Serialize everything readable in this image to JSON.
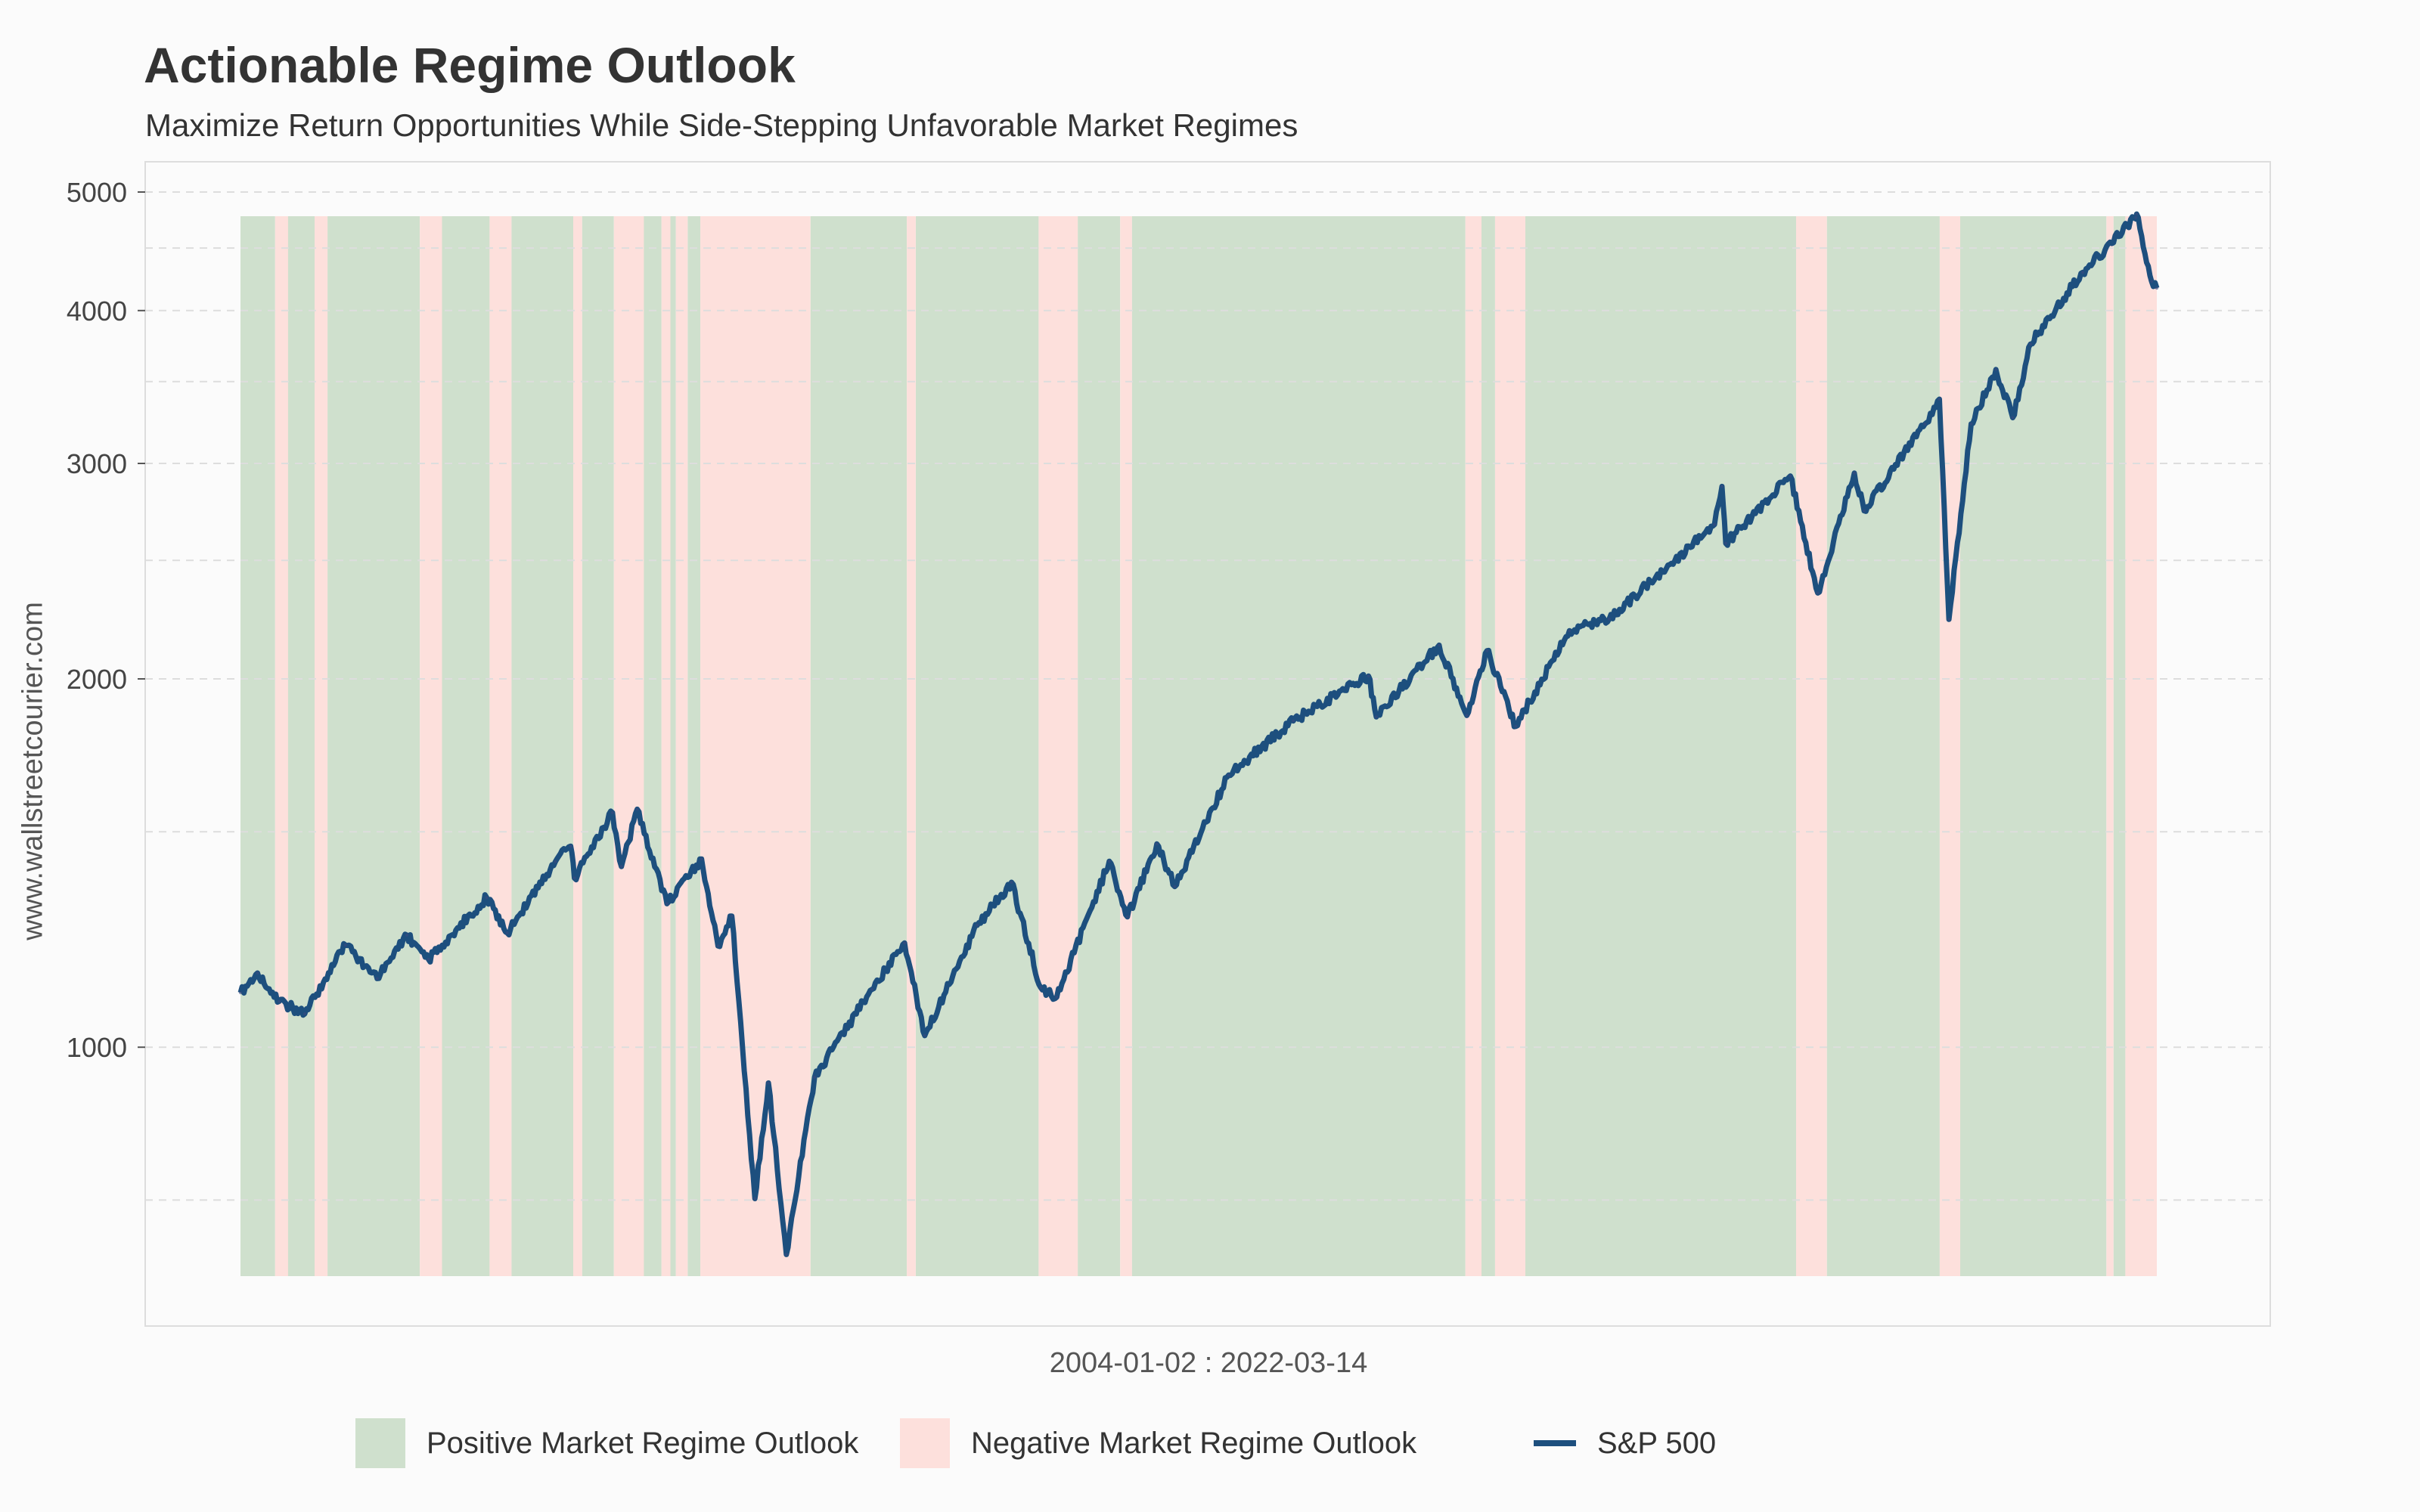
{
  "title": "Actionable Regime Outlook",
  "subtitle": "Maximize Return Opportunities While Side-Stepping Unfavorable Market Regimes",
  "ylabel": "www.wallstreetcourier.com",
  "xlabel": "2004-01-02 : 2022-03-14",
  "legend": {
    "positive": "Positive Market Regime Outlook",
    "negative": "Negative Market Regime Outlook",
    "sp500": "S&P 500"
  },
  "colors": {
    "positive": "#cfe0cd",
    "negative": "#fde0dc",
    "line": "#1d4f7e",
    "line_bear": "#3a4b80",
    "grid": "#dddddd"
  },
  "chart_data": {
    "type": "line",
    "title": "Actionable Regime Outlook",
    "subtitle": "Maximize Return Opportunities While Side-Stepping Unfavorable Market Regimes",
    "xlabel": "2004-01-02 : 2022-03-14",
    "ylabel": "www.wallstreetcourier.com",
    "y_scale": "log",
    "ylim": [
      650,
      5000
    ],
    "yticks": [
      1000,
      2000,
      3000,
      4000,
      5000
    ],
    "x_range": [
      "2004-01-02",
      "2022-03-14"
    ],
    "grid": true,
    "legend_position": "bottom",
    "series": [
      {
        "name": "S&P 500",
        "points": [
          [
            "2004-01-02",
            1108
          ],
          [
            "2004-03-01",
            1150
          ],
          [
            "2004-05-15",
            1090
          ],
          [
            "2004-08-12",
            1065
          ],
          [
            "2004-12-31",
            1212
          ],
          [
            "2005-04-20",
            1138
          ],
          [
            "2005-08-01",
            1235
          ],
          [
            "2005-10-15",
            1180
          ],
          [
            "2006-05-05",
            1325
          ],
          [
            "2006-07-15",
            1240
          ],
          [
            "2006-12-29",
            1418
          ],
          [
            "2007-02-20",
            1460
          ],
          [
            "2007-03-05",
            1375
          ],
          [
            "2007-07-15",
            1555
          ],
          [
            "2007-08-15",
            1405
          ],
          [
            "2007-10-09",
            1565
          ],
          [
            "2008-01-20",
            1310
          ],
          [
            "2008-05-19",
            1425
          ],
          [
            "2008-07-15",
            1210
          ],
          [
            "2008-09-01",
            1280
          ],
          [
            "2008-11-20",
            752
          ],
          [
            "2009-01-06",
            935
          ],
          [
            "2009-03-09",
            677
          ],
          [
            "2009-06-15",
            945
          ],
          [
            "2009-12-31",
            1115
          ],
          [
            "2010-04-23",
            1217
          ],
          [
            "2010-07-02",
            1022
          ],
          [
            "2010-12-31",
            1258
          ],
          [
            "2011-04-29",
            1364
          ],
          [
            "2011-08-08",
            1119
          ],
          [
            "2011-10-03",
            1099
          ],
          [
            "2012-04-02",
            1419
          ],
          [
            "2012-06-04",
            1278
          ],
          [
            "2012-09-14",
            1466
          ],
          [
            "2012-11-15",
            1353
          ],
          [
            "2013-05-21",
            1669
          ],
          [
            "2013-12-31",
            1848
          ],
          [
            "2014-09-18",
            2011
          ],
          [
            "2014-10-15",
            1862
          ],
          [
            "2015-05-21",
            2131
          ],
          [
            "2015-08-25",
            1867
          ],
          [
            "2015-11-03",
            2109
          ],
          [
            "2016-02-11",
            1829
          ],
          [
            "2016-08-15",
            2190
          ],
          [
            "2016-12-31",
            2239
          ],
          [
            "2017-12-31",
            2674
          ],
          [
            "2018-01-26",
            2873
          ],
          [
            "2018-02-08",
            2581
          ],
          [
            "2018-09-20",
            2930
          ],
          [
            "2018-12-24",
            2351
          ],
          [
            "2019-04-30",
            2946
          ],
          [
            "2019-06-03",
            2744
          ],
          [
            "2019-12-31",
            3231
          ],
          [
            "2020-02-19",
            3386
          ],
          [
            "2020-03-23",
            2237
          ],
          [
            "2020-06-08",
            3232
          ],
          [
            "2020-09-02",
            3580
          ],
          [
            "2020-10-30",
            3270
          ],
          [
            "2020-12-31",
            3756
          ],
          [
            "2021-06-30",
            4298
          ],
          [
            "2021-12-31",
            4766
          ],
          [
            "2022-01-03",
            4797
          ],
          [
            "2022-02-24",
            4225
          ],
          [
            "2022-03-14",
            4173
          ]
        ]
      }
    ],
    "regimes": [
      {
        "regime": "positive",
        "start": "2004-01-02",
        "end": "2004-05-01"
      },
      {
        "regime": "negative",
        "start": "2004-05-01",
        "end": "2004-06-15"
      },
      {
        "regime": "positive",
        "start": "2004-06-15",
        "end": "2004-09-15"
      },
      {
        "regime": "negative",
        "start": "2004-09-15",
        "end": "2004-10-30"
      },
      {
        "regime": "positive",
        "start": "2004-10-30",
        "end": "2005-09-15"
      },
      {
        "regime": "negative",
        "start": "2005-09-15",
        "end": "2005-12-01"
      },
      {
        "regime": "positive",
        "start": "2005-12-01",
        "end": "2006-05-15"
      },
      {
        "regime": "negative",
        "start": "2006-05-15",
        "end": "2006-07-30"
      },
      {
        "regime": "positive",
        "start": "2006-07-30",
        "end": "2007-03-01"
      },
      {
        "regime": "negative",
        "start": "2007-03-01",
        "end": "2007-04-01"
      },
      {
        "regime": "positive",
        "start": "2007-04-01",
        "end": "2007-07-20"
      },
      {
        "regime": "negative",
        "start": "2007-07-20",
        "end": "2007-11-01"
      },
      {
        "regime": "positive",
        "start": "2007-11-01",
        "end": "2008-01-01"
      },
      {
        "regime": "negative",
        "start": "2008-01-01",
        "end": "2008-02-01"
      },
      {
        "regime": "positive",
        "start": "2008-02-01",
        "end": "2008-02-20"
      },
      {
        "regime": "negative",
        "start": "2008-02-20",
        "end": "2008-04-01"
      },
      {
        "regime": "positive",
        "start": "2008-04-01",
        "end": "2008-05-15"
      },
      {
        "regime": "negative",
        "start": "2008-05-15",
        "end": "2009-06-01"
      },
      {
        "regime": "positive",
        "start": "2009-06-01",
        "end": "2010-05-01"
      },
      {
        "regime": "negative",
        "start": "2010-05-01",
        "end": "2010-06-01"
      },
      {
        "regime": "positive",
        "start": "2010-06-01",
        "end": "2011-08-01"
      },
      {
        "regime": "negative",
        "start": "2011-08-01",
        "end": "2011-12-15"
      },
      {
        "regime": "positive",
        "start": "2011-12-15",
        "end": "2012-05-10"
      },
      {
        "regime": "negative",
        "start": "2012-05-10",
        "end": "2012-06-20"
      },
      {
        "regime": "positive",
        "start": "2012-06-20",
        "end": "2015-08-20"
      },
      {
        "regime": "negative",
        "start": "2015-08-20",
        "end": "2015-10-15"
      },
      {
        "regime": "positive",
        "start": "2015-10-15",
        "end": "2015-12-01"
      },
      {
        "regime": "negative",
        "start": "2015-12-01",
        "end": "2016-03-15"
      },
      {
        "regime": "positive",
        "start": "2016-03-15",
        "end": "2018-10-10"
      },
      {
        "regime": "negative",
        "start": "2018-10-10",
        "end": "2019-01-25"
      },
      {
        "regime": "positive",
        "start": "2019-01-25",
        "end": "2020-02-20"
      },
      {
        "regime": "negative",
        "start": "2020-02-20",
        "end": "2020-05-01"
      },
      {
        "regime": "positive",
        "start": "2020-05-01",
        "end": "2021-09-20"
      },
      {
        "regime": "negative",
        "start": "2021-09-20",
        "end": "2021-10-15"
      },
      {
        "regime": "positive",
        "start": "2021-10-15",
        "end": "2021-11-25"
      },
      {
        "regime": "negative",
        "start": "2021-11-25",
        "end": "2022-03-14"
      }
    ]
  }
}
